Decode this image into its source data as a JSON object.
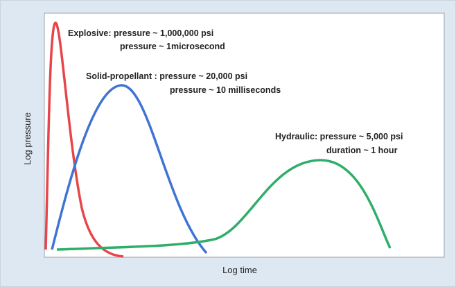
{
  "axes": {
    "x_label": "Log time",
    "y_label": "Log pressure"
  },
  "annotations": [
    {
      "line1": "Explosive: pressure ~ 1,000,000 psi",
      "line2": "pressure ~ 1microsecond"
    },
    {
      "line1": "Solid-propellant : pressure ~ 20,000 psi",
      "line2": "pressure ~ 10 milliseconds"
    },
    {
      "line1": "Hydraulic: pressure ~ 5,000 psi",
      "line2": "duration ~ 1 hour"
    }
  ]
}
